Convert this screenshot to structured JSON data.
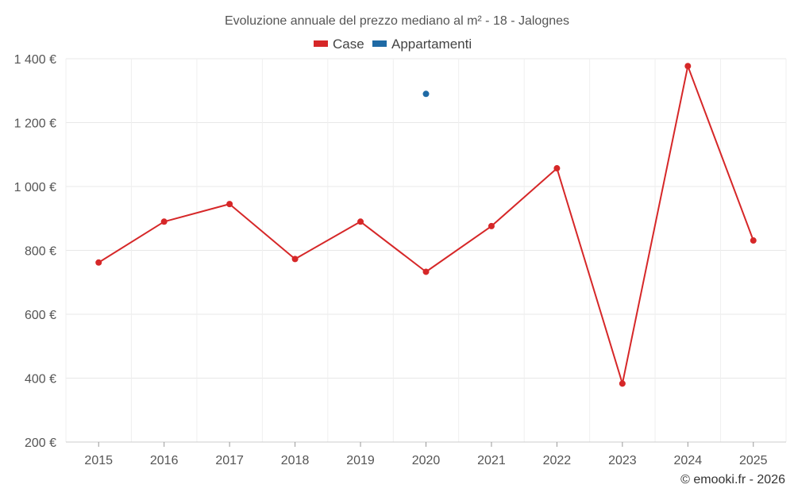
{
  "chart_data": {
    "type": "line",
    "title": "Evoluzione annuale del prezzo mediano al m² - 18 - Jalognes",
    "categories": [
      "2015",
      "2016",
      "2017",
      "2018",
      "2019",
      "2020",
      "2021",
      "2022",
      "2023",
      "2024",
      "2025"
    ],
    "y_ticks": [
      200,
      400,
      600,
      800,
      1000,
      1200,
      1400
    ],
    "y_tick_labels": [
      "200 €",
      "400 €",
      "600 €",
      "800 €",
      "1 000 €",
      "1 200 €",
      "1 400 €"
    ],
    "ylim": [
      200,
      1400
    ],
    "grid": true,
    "legend_position": "top-center",
    "series": [
      {
        "name": "Case",
        "color": "#d62728",
        "values": [
          762,
          890,
          945,
          773,
          890,
          733,
          876,
          1057,
          383,
          1377,
          831
        ]
      },
      {
        "name": "Appartamenti",
        "color": "#1f6aa5",
        "values": [
          null,
          null,
          null,
          null,
          null,
          1290,
          null,
          null,
          null,
          null,
          null
        ]
      }
    ],
    "credit": "© emooki.fr - 2026"
  }
}
